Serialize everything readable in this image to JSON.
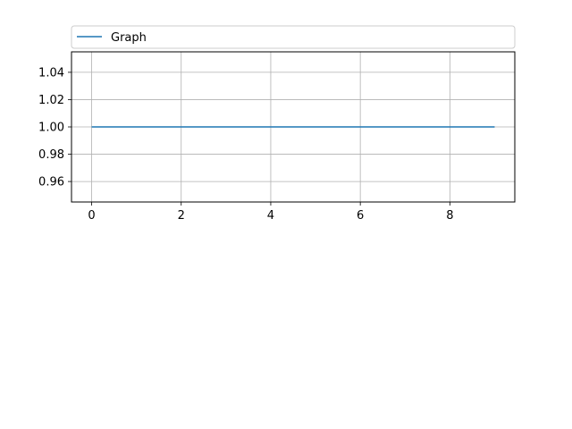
{
  "chart_data": {
    "type": "line",
    "title": "",
    "xlabel": "",
    "ylabel": "",
    "x": [
      0,
      1,
      2,
      3,
      4,
      5,
      6,
      7,
      8,
      9
    ],
    "series": [
      {
        "name": "Graph",
        "values": [
          1,
          1,
          1,
          1,
          1,
          1,
          1,
          1,
          1,
          1
        ],
        "color": "#1f77b4"
      }
    ],
    "xlim": [
      -0.45,
      9.45
    ],
    "ylim": [
      0.945,
      1.055
    ],
    "xticks": [
      0,
      2,
      4,
      6,
      8
    ],
    "xtick_labels": [
      "0",
      "2",
      "4",
      "6",
      "8"
    ],
    "yticks": [
      0.96,
      0.98,
      1.0,
      1.02,
      1.04
    ],
    "ytick_labels": [
      "0.96",
      "0.98",
      "1.00",
      "1.02",
      "1.04"
    ],
    "grid": true,
    "legend": {
      "placement": "top",
      "entries": [
        "Graph"
      ]
    }
  }
}
